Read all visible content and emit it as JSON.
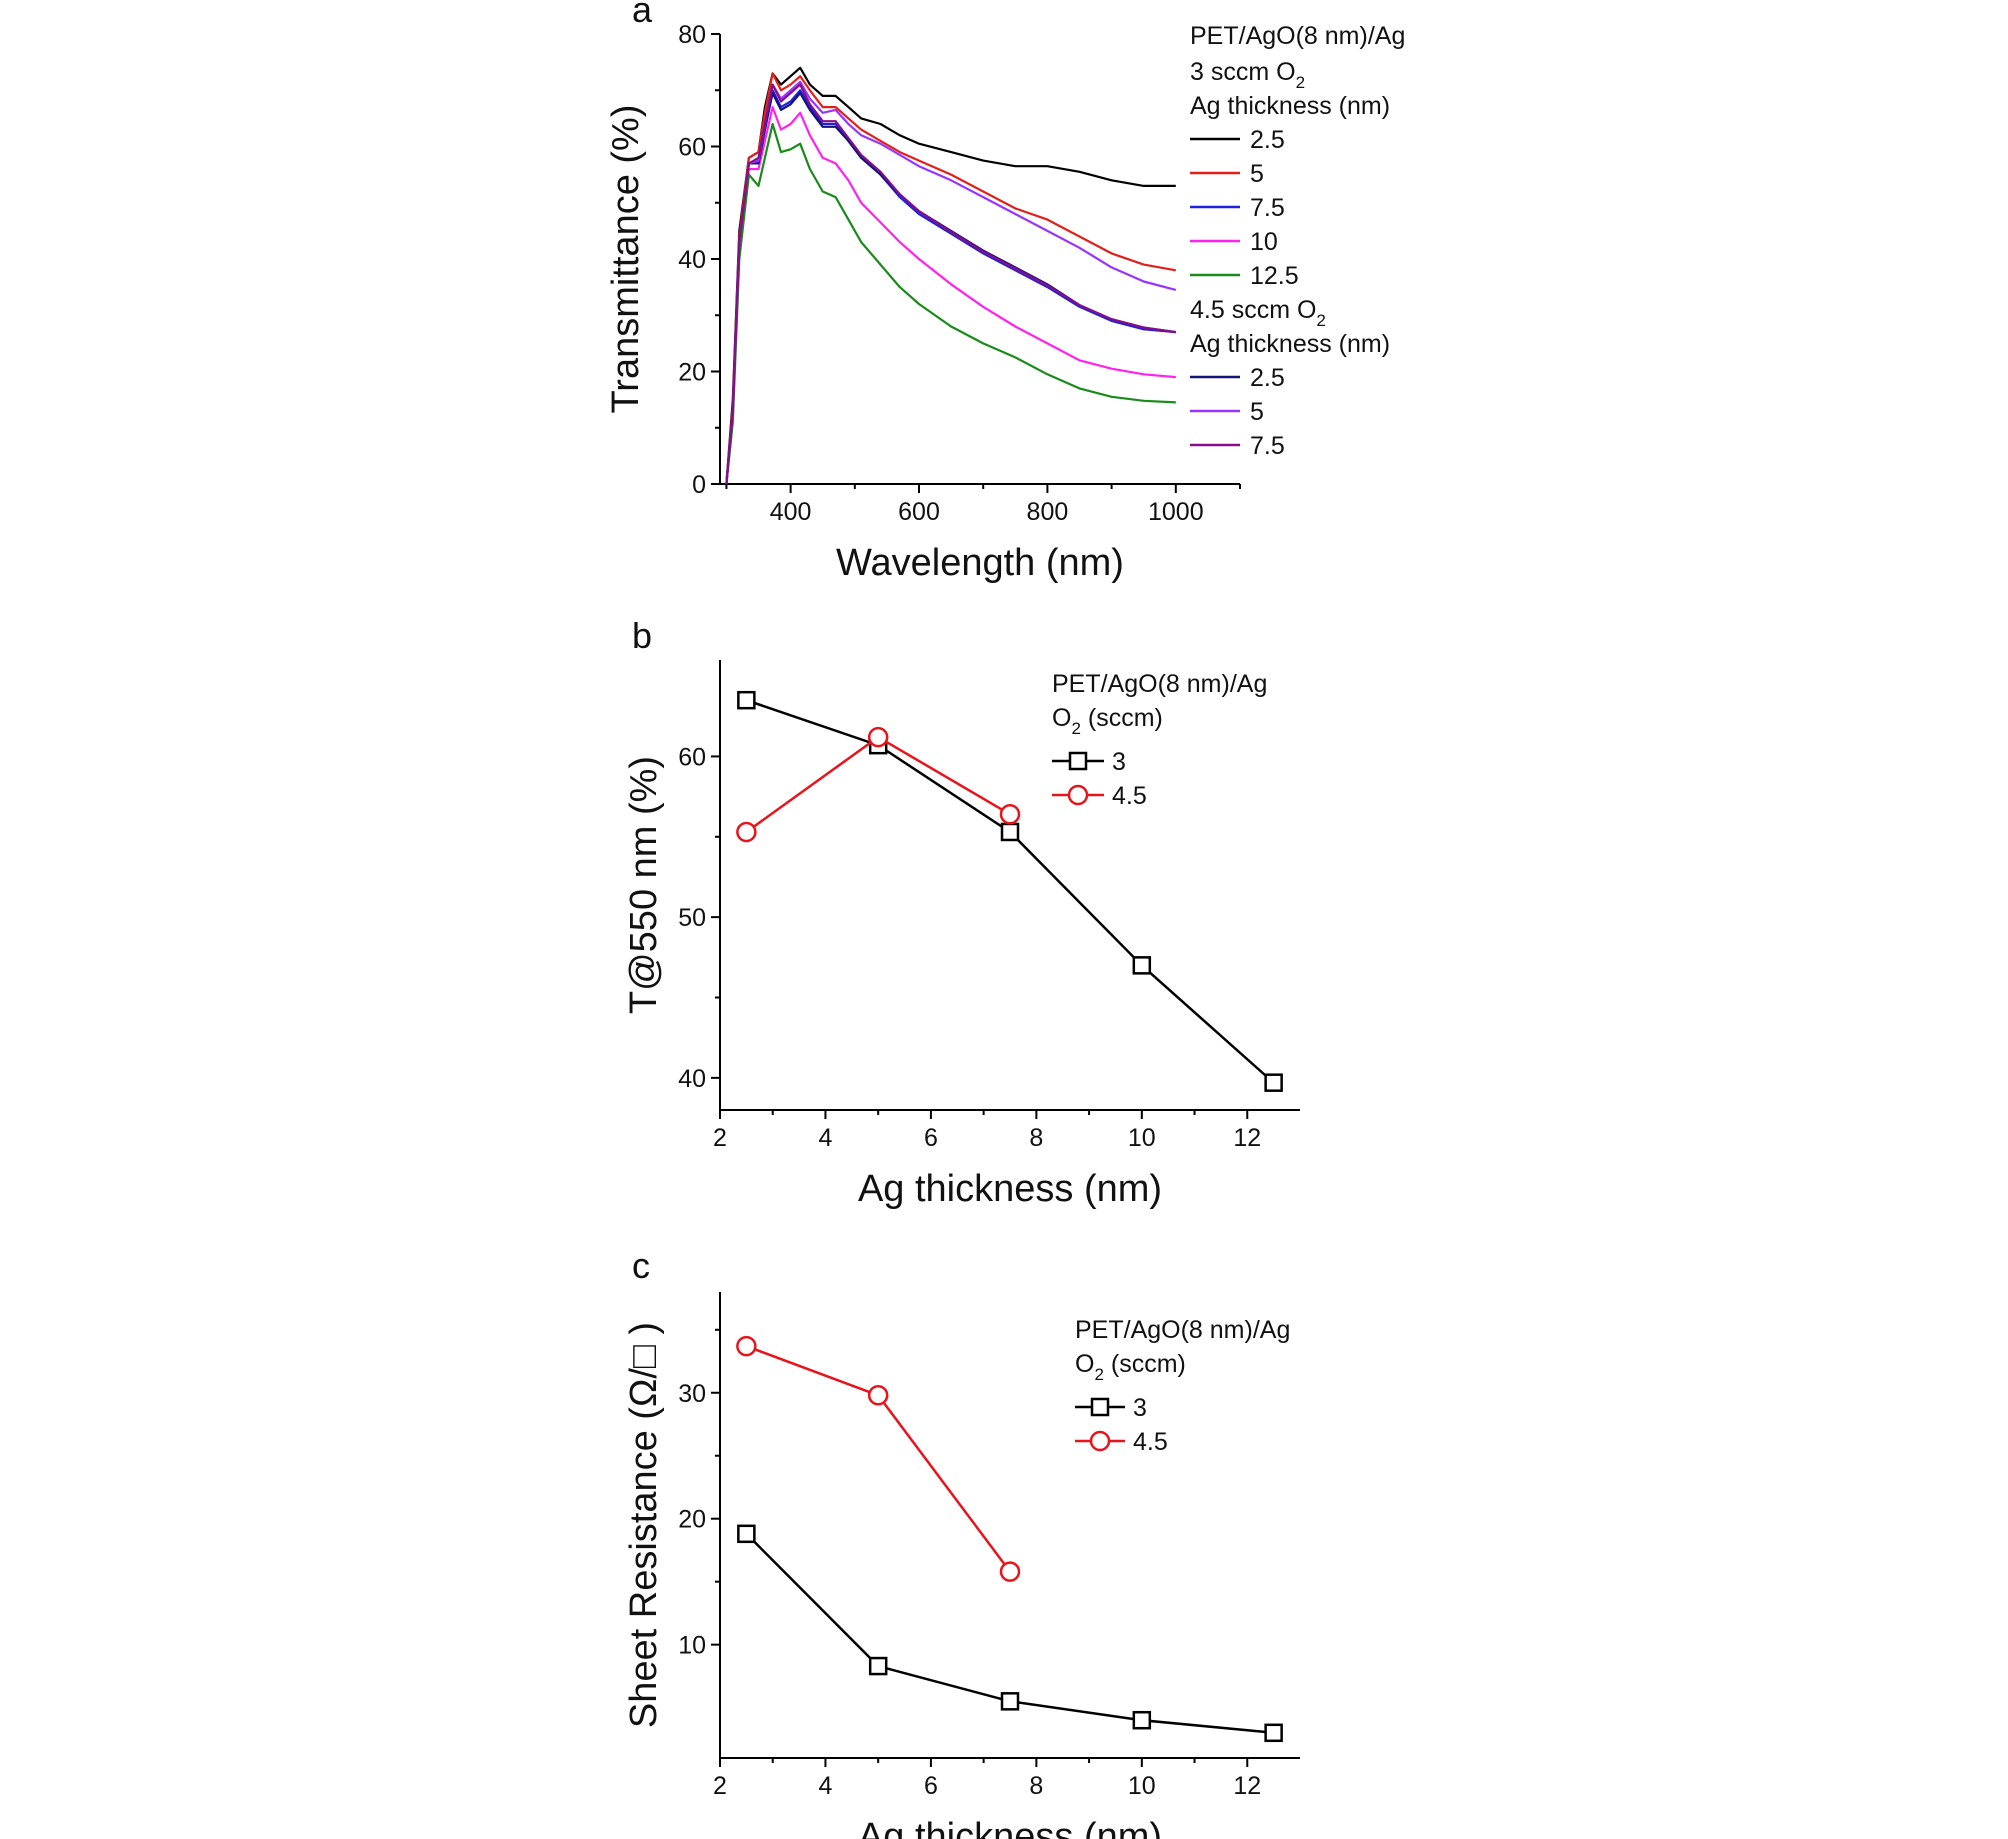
{
  "chart_data": [
    {
      "panel": "a",
      "type": "line",
      "title": "",
      "xlabel": "Wavelength (nm)",
      "ylabel": "Transmittance (%)",
      "xlim": [
        290,
        1100
      ],
      "ylim": [
        0,
        80
      ],
      "xticks": [
        400,
        600,
        800,
        1000
      ],
      "yticks": [
        0,
        20,
        40,
        60,
        80
      ],
      "legend_header": "PET/AgO(8 nm)/Ag",
      "legend_groups": [
        {
          "title_main": "3 sccm O",
          "title_sub": "2",
          "subtitle": "Ag thickness (nm)"
        },
        {
          "title_main": "4.5 sccm O",
          "title_sub": "2",
          "subtitle": "Ag thickness (nm)"
        }
      ],
      "series": [
        {
          "name": "2.5",
          "group": 0,
          "color": "#000000",
          "x": [
            300,
            310,
            320,
            335,
            350,
            360,
            372,
            385,
            400,
            415,
            430,
            450,
            470,
            490,
            510,
            540,
            570,
            600,
            650,
            700,
            750,
            800,
            850,
            900,
            950,
            1000
          ],
          "y": [
            0,
            15,
            45,
            58,
            59,
            67,
            73,
            71,
            72.5,
            74,
            71,
            69,
            69,
            67,
            65,
            64,
            62,
            60.5,
            59,
            57.5,
            56.5,
            56.5,
            55.5,
            54,
            53,
            53
          ]
        },
        {
          "name": "5",
          "group": 0,
          "color": "#e0201b",
          "x": [
            300,
            310,
            320,
            335,
            350,
            360,
            372,
            385,
            400,
            415,
            430,
            450,
            470,
            490,
            510,
            540,
            570,
            600,
            650,
            700,
            750,
            800,
            850,
            900,
            950,
            1000
          ],
          "y": [
            0,
            14,
            44,
            58,
            59,
            66,
            73,
            70,
            71,
            72.5,
            70,
            67,
            67,
            65,
            63,
            61,
            59,
            57.5,
            55,
            52,
            49,
            47,
            44,
            41,
            39,
            38
          ]
        },
        {
          "name": "7.5",
          "group": 0,
          "color": "#2020e0",
          "x": [
            300,
            310,
            320,
            335,
            350,
            360,
            372,
            385,
            400,
            415,
            430,
            450,
            470,
            490,
            510,
            540,
            570,
            600,
            650,
            700,
            750,
            800,
            850,
            900,
            950,
            1000
          ],
          "y": [
            0,
            13,
            43,
            57,
            57.5,
            63,
            70,
            67,
            68,
            70,
            67,
            64,
            64,
            61,
            58,
            55,
            51,
            48,
            44.5,
            41,
            38,
            35,
            31.5,
            29,
            27.5,
            27
          ]
        },
        {
          "name": "10",
          "group": 0,
          "color": "#ff22ee",
          "x": [
            300,
            310,
            320,
            335,
            350,
            360,
            372,
            385,
            400,
            415,
            430,
            450,
            470,
            490,
            510,
            540,
            570,
            600,
            650,
            700,
            750,
            800,
            850,
            900,
            950,
            1000
          ],
          "y": [
            0,
            12,
            42,
            56,
            56,
            61,
            67,
            63,
            64,
            66,
            62,
            58,
            57,
            54,
            50,
            46.5,
            43,
            40,
            35.5,
            31.5,
            28,
            25,
            22,
            20.5,
            19.5,
            19
          ]
        },
        {
          "name": "12.5",
          "group": 0,
          "color": "#1a8a1a",
          "x": [
            300,
            310,
            320,
            335,
            350,
            360,
            372,
            385,
            400,
            415,
            430,
            450,
            470,
            490,
            510,
            540,
            570,
            600,
            650,
            700,
            750,
            800,
            850,
            900,
            950,
            1000
          ],
          "y": [
            0,
            11,
            40,
            55,
            53,
            58,
            64,
            59,
            59.5,
            60.5,
            56,
            52,
            51,
            47,
            43,
            39,
            35,
            32,
            28,
            25,
            22.5,
            19.5,
            17,
            15.5,
            14.8,
            14.5
          ]
        },
        {
          "name": "2.5",
          "group": 1,
          "color": "#14147a",
          "x": [
            300,
            310,
            320,
            335,
            350,
            360,
            372,
            385,
            400,
            415,
            430,
            450,
            470,
            490,
            510,
            540,
            570,
            600,
            650,
            700,
            750,
            800,
            850,
            900,
            950,
            1000
          ],
          "y": [
            0,
            13,
            43,
            57,
            57,
            63,
            69.5,
            66.5,
            67.5,
            69.5,
            66.5,
            63.5,
            63.5,
            61,
            58,
            55,
            51.5,
            48.5,
            45,
            41.5,
            38.5,
            35.5,
            31.8,
            29.3,
            27.8,
            27
          ]
        },
        {
          "name": "5",
          "group": 1,
          "color": "#9933ff",
          "x": [
            300,
            310,
            320,
            335,
            350,
            360,
            372,
            385,
            400,
            415,
            430,
            450,
            470,
            490,
            510,
            540,
            570,
            600,
            650,
            700,
            750,
            800,
            850,
            900,
            950,
            1000
          ],
          "y": [
            0,
            13,
            43,
            57,
            57.5,
            64,
            71,
            68.5,
            70,
            71.5,
            68.5,
            66,
            66.5,
            64,
            62,
            60.5,
            58.5,
            56.5,
            54,
            51,
            48,
            45,
            42,
            38.5,
            36,
            34.5
          ]
        },
        {
          "name": "7.5",
          "group": 1,
          "color": "#880e88",
          "x": [
            300,
            310,
            320,
            335,
            350,
            360,
            372,
            385,
            400,
            415,
            430,
            450,
            470,
            490,
            510,
            540,
            570,
            600,
            650,
            700,
            750,
            800,
            850,
            900,
            950,
            1000
          ],
          "y": [
            0,
            13,
            43,
            57,
            58,
            64,
            71,
            68,
            69.5,
            71,
            67.5,
            64.5,
            64.5,
            61.5,
            58.5,
            55.5,
            51.5,
            48.5,
            44.8,
            41.3,
            38.3,
            35.3,
            31.8,
            29.3,
            27.8,
            27
          ]
        }
      ]
    },
    {
      "panel": "b",
      "type": "line",
      "title": "",
      "xlabel": "Ag thickness (nm)",
      "ylabel": "T@550 nm (%)",
      "xlim": [
        2,
        13
      ],
      "ylim": [
        38,
        66
      ],
      "xticks": [
        2,
        4,
        6,
        8,
        10,
        12
      ],
      "yticks": [
        40,
        50,
        60
      ],
      "legend_header": "PET/AgO(8 nm)/Ag",
      "legend_title_main": "O",
      "legend_title_sub": "2",
      "legend_title_rest": " (sccm)",
      "series": [
        {
          "name": "3",
          "color": "#000000",
          "marker": "square",
          "x": [
            2.5,
            5,
            7.5,
            10,
            12.5
          ],
          "y": [
            63.5,
            60.7,
            55.3,
            47.0,
            39.7
          ]
        },
        {
          "name": "4.5",
          "color": "#e8141c",
          "marker": "circle",
          "x": [
            2.5,
            5,
            7.5
          ],
          "y": [
            55.3,
            61.2,
            56.4
          ]
        }
      ]
    },
    {
      "panel": "c",
      "type": "line",
      "title": "",
      "xlabel": "Ag thickness (nm)",
      "ylabel": "Sheet Resistance (Ω/□ )",
      "xlim": [
        2,
        13
      ],
      "ylim": [
        1,
        38
      ],
      "xticks": [
        2,
        4,
        6,
        8,
        10,
        12
      ],
      "yticks": [
        10,
        20,
        30
      ],
      "legend_header": "PET/AgO(8 nm)/Ag",
      "legend_title_main": "O",
      "legend_title_sub": "2",
      "legend_title_rest": " (sccm)",
      "series": [
        {
          "name": "3",
          "color": "#000000",
          "marker": "square",
          "x": [
            2.5,
            5,
            7.5,
            10,
            12.5
          ],
          "y": [
            18.8,
            8.3,
            5.5,
            4.0,
            3.0
          ]
        },
        {
          "name": "4.5",
          "color": "#e8141c",
          "marker": "circle",
          "x": [
            2.5,
            5,
            7.5
          ],
          "y": [
            33.7,
            29.8,
            15.8
          ]
        }
      ]
    }
  ]
}
